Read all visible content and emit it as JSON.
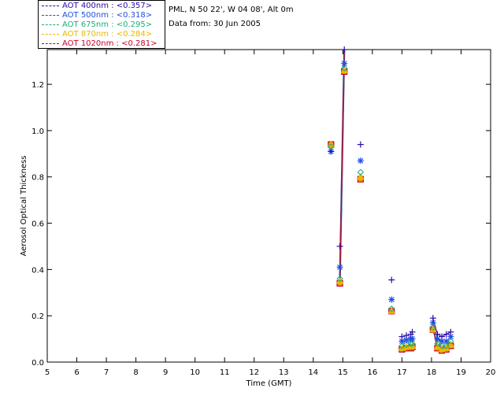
{
  "header": {
    "site": "PML, N 50 22', W 04 08', Alt 0m",
    "date": "Data from: 30 Jun 2005"
  },
  "legend": [
    {
      "label": "AOT  400nm : <0.357>",
      "color": "#2a0aa8"
    },
    {
      "label": "AOT  500nm : <0.318>",
      "color": "#1f4fe0"
    },
    {
      "label": "AOT  675nm : <0.295>",
      "color": "#16b07a"
    },
    {
      "label": "AOT  870nm : <0.284>",
      "color": "#e8b800"
    },
    {
      "label": "AOT 1020nm : <0.281>",
      "color": "#c8002a"
    }
  ],
  "chart_data": {
    "type": "scatter",
    "title": "",
    "xlabel": "Time (GMT)",
    "ylabel": "Aerosol Optical Thickness",
    "xlim": [
      5,
      20
    ],
    "ylim": [
      0.0,
      1.35
    ],
    "xticks": [
      5,
      6,
      7,
      8,
      9,
      10,
      11,
      12,
      13,
      14,
      15,
      16,
      17,
      18,
      19,
      20
    ],
    "yticks": [
      0.0,
      0.2,
      0.4,
      0.6,
      0.8,
      1.0,
      1.2
    ],
    "series": [
      {
        "name": "AOT 400nm",
        "marker": "plus",
        "points": [
          [
            14.6,
            0.91
          ],
          [
            14.9,
            0.5
          ],
          [
            15.05,
            1.35
          ],
          [
            15.6,
            0.94
          ],
          [
            16.65,
            0.355
          ],
          [
            17.0,
            0.11
          ],
          [
            17.15,
            0.115
          ],
          [
            17.3,
            0.12
          ],
          [
            17.35,
            0.13
          ],
          [
            18.05,
            0.19
          ],
          [
            18.2,
            0.12
          ],
          [
            18.35,
            0.11
          ],
          [
            18.5,
            0.12
          ],
          [
            18.65,
            0.13
          ]
        ]
      },
      {
        "name": "AOT 500nm",
        "marker": "asterisk",
        "points": [
          [
            14.6,
            0.91
          ],
          [
            14.9,
            0.41
          ],
          [
            15.05,
            1.29
          ],
          [
            15.6,
            0.87
          ],
          [
            16.65,
            0.27
          ],
          [
            17.0,
            0.09
          ],
          [
            17.15,
            0.095
          ],
          [
            17.3,
            0.1
          ],
          [
            17.35,
            0.1
          ],
          [
            18.05,
            0.17
          ],
          [
            18.2,
            0.1
          ],
          [
            18.35,
            0.09
          ],
          [
            18.5,
            0.09
          ],
          [
            18.65,
            0.11
          ]
        ]
      },
      {
        "name": "AOT 675nm",
        "marker": "diamond",
        "points": [
          [
            14.6,
            0.93
          ],
          [
            14.9,
            0.36
          ],
          [
            15.05,
            1.27
          ],
          [
            15.6,
            0.82
          ],
          [
            16.65,
            0.23
          ],
          [
            17.0,
            0.07
          ],
          [
            17.15,
            0.075
          ],
          [
            17.3,
            0.08
          ],
          [
            17.35,
            0.08
          ],
          [
            18.05,
            0.15
          ],
          [
            18.2,
            0.08
          ],
          [
            18.35,
            0.07
          ],
          [
            18.5,
            0.07
          ],
          [
            18.65,
            0.09
          ]
        ]
      },
      {
        "name": "AOT 870nm",
        "marker": "triangle",
        "points": [
          [
            14.6,
            0.94
          ],
          [
            14.9,
            0.35
          ],
          [
            15.05,
            1.26
          ],
          [
            15.6,
            0.8
          ],
          [
            16.65,
            0.22
          ],
          [
            17.0,
            0.06
          ],
          [
            17.15,
            0.065
          ],
          [
            17.3,
            0.065
          ],
          [
            17.35,
            0.07
          ],
          [
            18.05,
            0.14
          ],
          [
            18.2,
            0.065
          ],
          [
            18.35,
            0.055
          ],
          [
            18.5,
            0.06
          ],
          [
            18.65,
            0.075
          ]
        ]
      },
      {
        "name": "AOT 1020nm",
        "marker": "square",
        "points": [
          [
            14.6,
            0.94
          ],
          [
            14.9,
            0.34
          ],
          [
            15.05,
            1.255
          ],
          [
            15.6,
            0.79
          ],
          [
            16.65,
            0.22
          ],
          [
            17.0,
            0.055
          ],
          [
            17.15,
            0.06
          ],
          [
            17.3,
            0.06
          ],
          [
            17.35,
            0.065
          ],
          [
            18.05,
            0.14
          ],
          [
            18.2,
            0.06
          ],
          [
            18.35,
            0.05
          ],
          [
            18.5,
            0.055
          ],
          [
            18.65,
            0.07
          ]
        ]
      }
    ],
    "line_segment": {
      "name": "burst",
      "x": [
        14.9,
        15.05
      ],
      "y": [
        0.35,
        1.35
      ]
    }
  }
}
